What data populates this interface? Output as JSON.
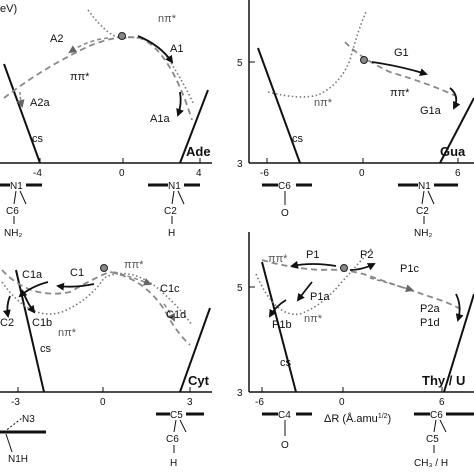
{
  "axis": {
    "y_unit_fragment": "eV)",
    "x_label": "ΔR (Å.amu",
    "x_label_exp": "1/2",
    "x_label_close": ")"
  },
  "panels": [
    {
      "name": "Ade",
      "x_ticks": [
        "-4",
        "0",
        "4"
      ],
      "y_ticks": [],
      "labels": {
        "npi": "nπ*",
        "pipi": "ππ*",
        "cs": "cs",
        "a": "A1",
        "b": "A2",
        "c": "A1a",
        "d": "A2a"
      }
    },
    {
      "name": "Gua",
      "x_ticks": [
        "-6",
        "0",
        "6"
      ],
      "y_ticks": [
        "5",
        "3"
      ],
      "labels": {
        "npi": "nπ*",
        "pipi": "ππ*",
        "cs": "cs",
        "a": "G1",
        "c": "G1a"
      }
    },
    {
      "name": "Cyt",
      "x_ticks": [
        "-3",
        "0",
        "3"
      ],
      "y_ticks": [],
      "labels": {
        "npi": "nπ*",
        "pipi": "ππ*",
        "cs": "cs",
        "a": "C1",
        "b": "C1a",
        "c": "C1b",
        "d": "C1c",
        "e": "C1d",
        "f": "C2"
      }
    },
    {
      "name": "Thy / U",
      "x_ticks": [
        "-6",
        "0",
        "6"
      ],
      "y_ticks": [
        "5",
        "3"
      ],
      "labels": {
        "npi": "nπ*",
        "pipi": "ππ*",
        "cs": "cs",
        "a": "P1",
        "b": "P2",
        "c": "P1a",
        "d": "P1b",
        "e": "P1c",
        "f": "P2a",
        "g": "P1d"
      }
    }
  ],
  "molecules": {
    "ade_left": [
      "N1",
      "C6",
      "NH₂"
    ],
    "ade_right": [
      "N1",
      "C2",
      "H"
    ],
    "gua_mid": [
      "C6",
      "O"
    ],
    "gua_right": [
      "N1",
      "C2",
      "NH₂"
    ],
    "cyt_left": [
      "N3",
      "N1H"
    ],
    "cyt_right": [
      "C5",
      "C6",
      "H"
    ],
    "thy_left": [
      "C4",
      "O"
    ],
    "thy_right": [
      "C6",
      "C5",
      "CH₃ / H"
    ]
  }
}
